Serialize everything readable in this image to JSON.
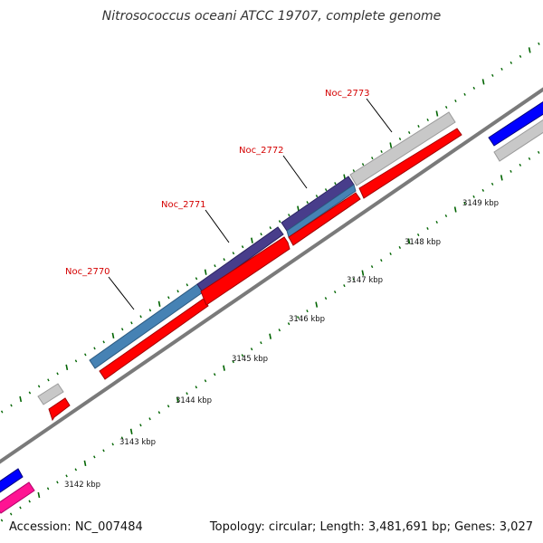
{
  "title": "Nitrosococcus oceani ATCC 19707, complete genome",
  "footer": {
    "accession": "Accession: NC_007484",
    "summary": "Topology: circular; Length: 3,481,691 bp; Genes: 3,027"
  },
  "ticks": [
    "3142 kbp",
    "3143 kbp",
    "3144 kbp",
    "3145 kbp",
    "3146 kbp",
    "3147 kbp",
    "3148 kbp",
    "3149 kbp"
  ],
  "genes": [
    {
      "id": "Noc_2770",
      "label": "Noc_2770"
    },
    {
      "id": "Noc_2771",
      "label": "Noc_2771"
    },
    {
      "id": "Noc_2772",
      "label": "Noc_2772"
    },
    {
      "id": "Noc_2773",
      "label": "Noc_2773"
    }
  ],
  "colors": {
    "backbone": "#8a8a8a",
    "cds": "#ff0000",
    "gene_grey": "#c8c8c8",
    "gene_steelblue": "#4682b4",
    "gene_darkslateblue": "#483d8b",
    "gene_blue": "#0000ff",
    "gene_magenta": "#ff1493",
    "tick": "#006400",
    "label": "#d40000"
  }
}
